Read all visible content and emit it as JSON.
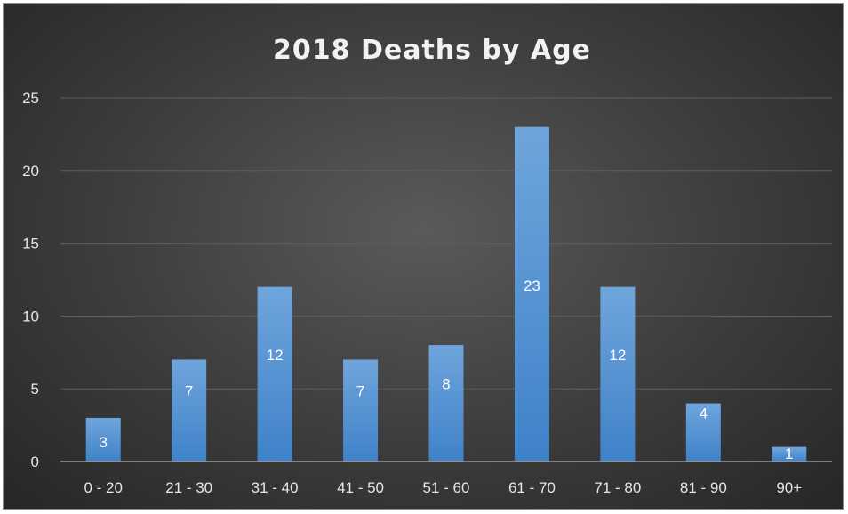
{
  "chart_data": {
    "type": "bar",
    "title": "2018 Deaths by Age",
    "categories": [
      "0 - 20",
      "21 - 30",
      "31 - 40",
      "41 - 50",
      "51 - 60",
      "61 - 70",
      "71 - 80",
      "81 - 90",
      "90+"
    ],
    "values": [
      3,
      7,
      12,
      7,
      8,
      23,
      12,
      4,
      1
    ],
    "ylim": [
      0,
      25
    ],
    "yticks": [
      0,
      5,
      10,
      15,
      20,
      25
    ],
    "xlabel": "",
    "ylabel": "",
    "grid": true,
    "legend": "none",
    "data_labels": "inside-end",
    "colors": {
      "bar_top": "#6fa5dc",
      "bar_bottom": "#3f82c8",
      "background": "#3c3c3c",
      "text": "#e6e6e6"
    }
  }
}
